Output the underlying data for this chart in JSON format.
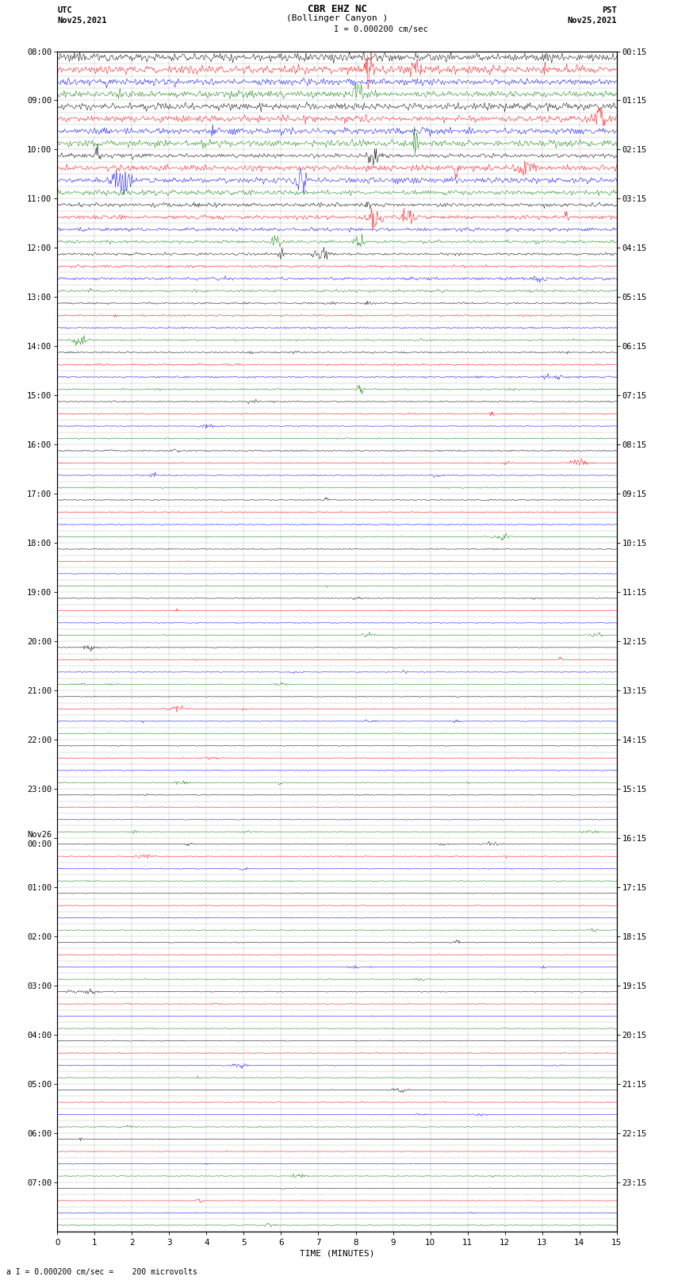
{
  "title_line1": "CBR EHZ NC",
  "title_line2": "(Bollinger Canyon )",
  "scale_label": "= 0.000200 cm/sec",
  "scale_label_bottom": "= 0.000200 cm/sec =    200 microvolts",
  "utc_label": "UTC",
  "utc_date": "Nov25,2021",
  "pst_label": "PST",
  "pst_date": "Nov25,2021",
  "xlabel": "TIME (MINUTES)",
  "xmin": 0,
  "xmax": 15,
  "xticks": [
    0,
    1,
    2,
    3,
    4,
    5,
    6,
    7,
    8,
    9,
    10,
    11,
    12,
    13,
    14,
    15
  ],
  "background_color": "#ffffff",
  "trace_colors": [
    "black",
    "red",
    "blue",
    "green"
  ],
  "utc_row_labels": [
    "08:00",
    "",
    "",
    "",
    "09:00",
    "",
    "",
    "",
    "10:00",
    "",
    "",
    "",
    "11:00",
    "",
    "",
    "",
    "12:00",
    "",
    "",
    "",
    "13:00",
    "",
    "",
    "",
    "14:00",
    "",
    "",
    "",
    "15:00",
    "",
    "",
    "",
    "16:00",
    "",
    "",
    "",
    "17:00",
    "",
    "",
    "",
    "18:00",
    "",
    "",
    "",
    "19:00",
    "",
    "",
    "",
    "20:00",
    "",
    "",
    "",
    "21:00",
    "",
    "",
    "",
    "22:00",
    "",
    "",
    "",
    "23:00",
    "",
    "",
    "",
    "Nov26\n00:00",
    "",
    "",
    "",
    "01:00",
    "",
    "",
    "",
    "02:00",
    "",
    "",
    "",
    "03:00",
    "",
    "",
    "",
    "04:00",
    "",
    "",
    "",
    "05:00",
    "",
    "",
    "",
    "06:00",
    "",
    "",
    "",
    "07:00",
    "",
    "",
    ""
  ],
  "pst_row_labels": [
    "00:15",
    "",
    "",
    "",
    "01:15",
    "",
    "",
    "",
    "02:15",
    "",
    "",
    "",
    "03:15",
    "",
    "",
    "",
    "04:15",
    "",
    "",
    "",
    "05:15",
    "",
    "",
    "",
    "06:15",
    "",
    "",
    "",
    "07:15",
    "",
    "",
    "",
    "08:15",
    "",
    "",
    "",
    "09:15",
    "",
    "",
    "",
    "10:15",
    "",
    "",
    "",
    "11:15",
    "",
    "",
    "",
    "12:15",
    "",
    "",
    "",
    "13:15",
    "",
    "",
    "",
    "14:15",
    "",
    "",
    "",
    "15:15",
    "",
    "",
    "",
    "16:15",
    "",
    "",
    "",
    "17:15",
    "",
    "",
    "",
    "18:15",
    "",
    "",
    "",
    "19:15",
    "",
    "",
    "",
    "20:15",
    "",
    "",
    "",
    "21:15",
    "",
    "",
    "",
    "22:15",
    "",
    "",
    "",
    "23:15",
    "",
    "",
    ""
  ],
  "figwidth": 8.5,
  "figheight": 16.13,
  "dpi": 100,
  "grid_color": "#888888",
  "grid_linewidth": 0.3,
  "trace_linewidth": 0.35,
  "font_size": 7.5,
  "title_font_size": 9
}
